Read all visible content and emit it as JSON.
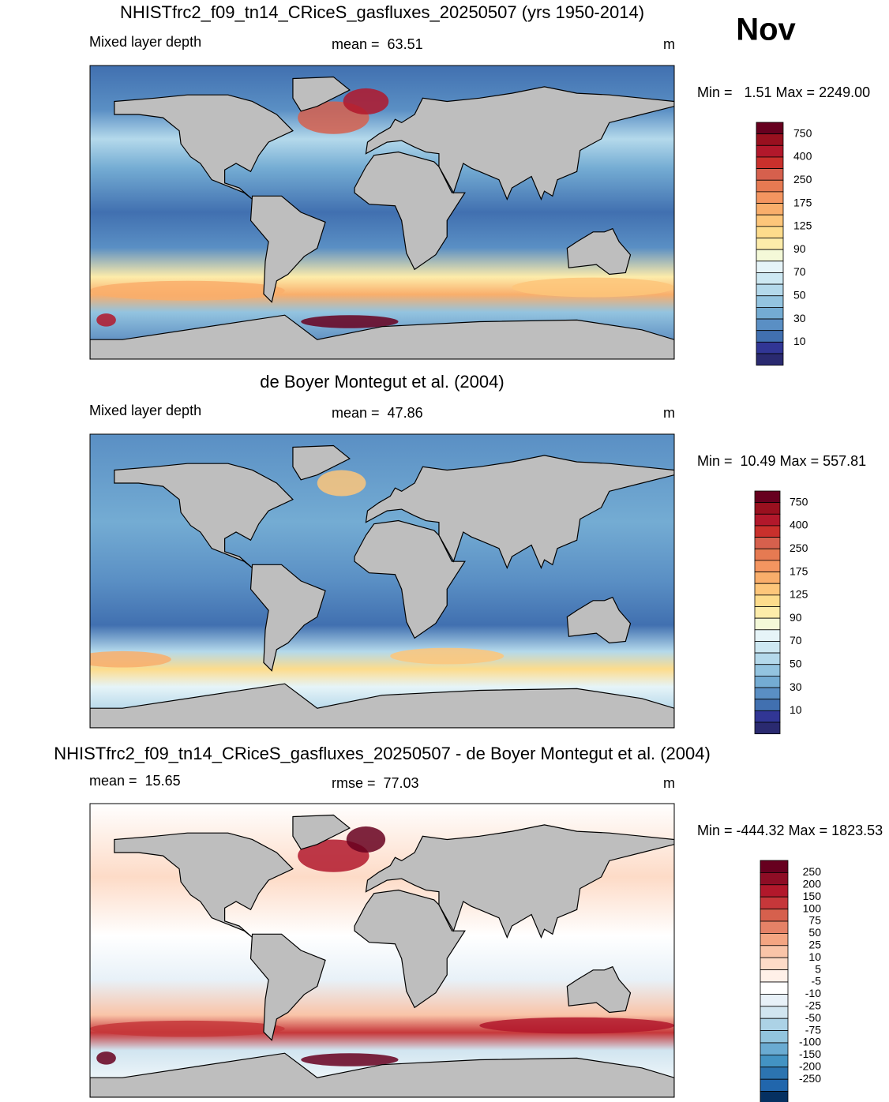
{
  "month": "Nov",
  "panels": [
    {
      "title": "NHISTfrc2_f09_tn14_CRiceS_gasfluxes_20250507 (yrs 1950-2014)",
      "left": "Mixed layer depth",
      "center": "mean =  63.51",
      "units": "m",
      "range": "Min =   1.51 Max = 2249.00",
      "colorbar": {
        "labels": [
          750,
          400,
          250,
          175,
          125,
          90,
          70,
          50,
          30,
          10
        ],
        "colors": [
          "#67001f",
          "#99101f",
          "#b2182b",
          "#c9302c",
          "#d6604d",
          "#e67a52",
          "#f49560",
          "#f9ae6b",
          "#fdc67a",
          "#fddc8c",
          "#fdecaa",
          "#f4f9d8",
          "#e6f4f8",
          "#cde8f2",
          "#b4d9eb",
          "#93c4e0",
          "#74acd3",
          "#5a8fc4",
          "#4170b0",
          "#313695",
          "#2a2a70"
        ]
      }
    },
    {
      "title": "de Boyer Montegut et al. (2004)",
      "left": "Mixed layer depth",
      "center": "mean =  47.86",
      "units": "m",
      "range": "Min =  10.49 Max = 557.81",
      "colorbar": {
        "labels": [
          750,
          400,
          250,
          175,
          125,
          90,
          70,
          50,
          30,
          10
        ],
        "colors": [
          "#67001f",
          "#99101f",
          "#b2182b",
          "#c9302c",
          "#d6604d",
          "#e67a52",
          "#f49560",
          "#f9ae6b",
          "#fdc67a",
          "#fddc8c",
          "#fdecaa",
          "#f4f9d8",
          "#e6f4f8",
          "#cde8f2",
          "#b4d9eb",
          "#93c4e0",
          "#74acd3",
          "#5a8fc4",
          "#4170b0",
          "#313695",
          "#2a2a70"
        ]
      }
    },
    {
      "title": "NHISTfrc2_f09_tn14_CRiceS_gasfluxes_20250507 - de Boyer Montegut et al. (2004)",
      "left": "mean =  15.65",
      "center": "rmse =  77.03",
      "units": "m",
      "range": "Min = -444.32 Max = 1823.53",
      "colorbar": {
        "labels": [
          250,
          200,
          150,
          100,
          75,
          50,
          25,
          10,
          5,
          -5,
          -10,
          -25,
          -50,
          -75,
          -100,
          -150,
          -200,
          -250
        ],
        "colors": [
          "#67001f",
          "#8e0d25",
          "#b2182b",
          "#c6373a",
          "#d6604d",
          "#e58267",
          "#f4a582",
          "#f9c4a8",
          "#fddbc7",
          "#fff0e8",
          "#ffffff",
          "#e8f1f8",
          "#d1e5f0",
          "#acd2e6",
          "#92c5de",
          "#6aabd2",
          "#4393c3",
          "#2c74b0",
          "#2166ac",
          "#053061"
        ]
      }
    }
  ]
}
